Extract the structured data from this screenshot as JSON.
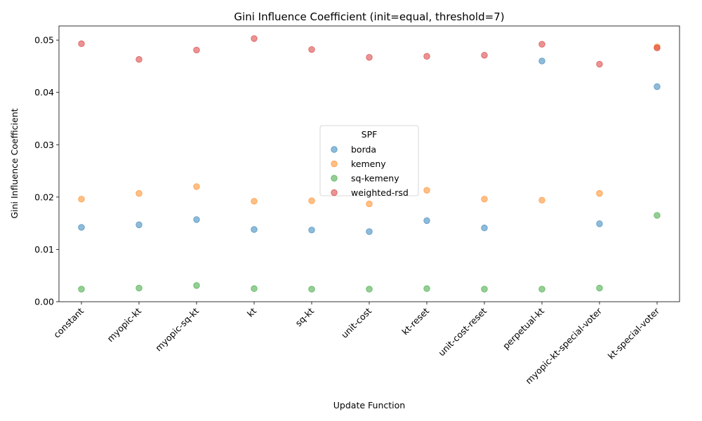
{
  "chart_data": {
    "type": "scatter",
    "title": "Gini Influence Coefficient (init=equal, threshold=7)",
    "xlabel": "Update Function",
    "ylabel": "Gini Influence Coefficient",
    "categories": [
      "constant",
      "myopic-kt",
      "myopic-sq-kt",
      "kt",
      "sq-kt",
      "unit-cost",
      "kt-reset",
      "unit-cost-reset",
      "perpetual-kt",
      "myopic-kt-special-voter",
      "kt-special-voter"
    ],
    "ylim": [
      0,
      0.0527
    ],
    "yticks": [
      0.0,
      0.01,
      0.02,
      0.03,
      0.04,
      0.05
    ],
    "ytick_labels": [
      "0.00",
      "0.01",
      "0.02",
      "0.03",
      "0.04",
      "0.05"
    ],
    "legend": {
      "title": "SPF",
      "placement": "center"
    },
    "grid": false,
    "series": [
      {
        "name": "borda",
        "color": "#1f77b4",
        "values": [
          0.0142,
          0.0147,
          0.0157,
          0.0138,
          0.0137,
          0.0134,
          0.0155,
          0.0141,
          0.046,
          0.0149,
          0.0411
        ]
      },
      {
        "name": "kemeny",
        "color": "#ff7f0e",
        "values": [
          0.0196,
          0.0207,
          0.022,
          0.0192,
          0.0193,
          0.0187,
          0.0213,
          0.0196,
          0.0194,
          0.0207,
          0.0487
        ]
      },
      {
        "name": "sq-kemeny",
        "color": "#2ca02c",
        "values": [
          0.0024,
          0.0026,
          0.0031,
          0.0025,
          0.0024,
          0.0024,
          0.0025,
          0.0024,
          0.0024,
          0.0026,
          0.0165
        ]
      },
      {
        "name": "weighted-rsd",
        "color": "#d62728",
        "values": [
          0.0493,
          0.0463,
          0.0481,
          0.0503,
          0.0482,
          0.0467,
          0.0469,
          0.0471,
          0.0492,
          0.0454,
          0.0485
        ]
      }
    ]
  }
}
